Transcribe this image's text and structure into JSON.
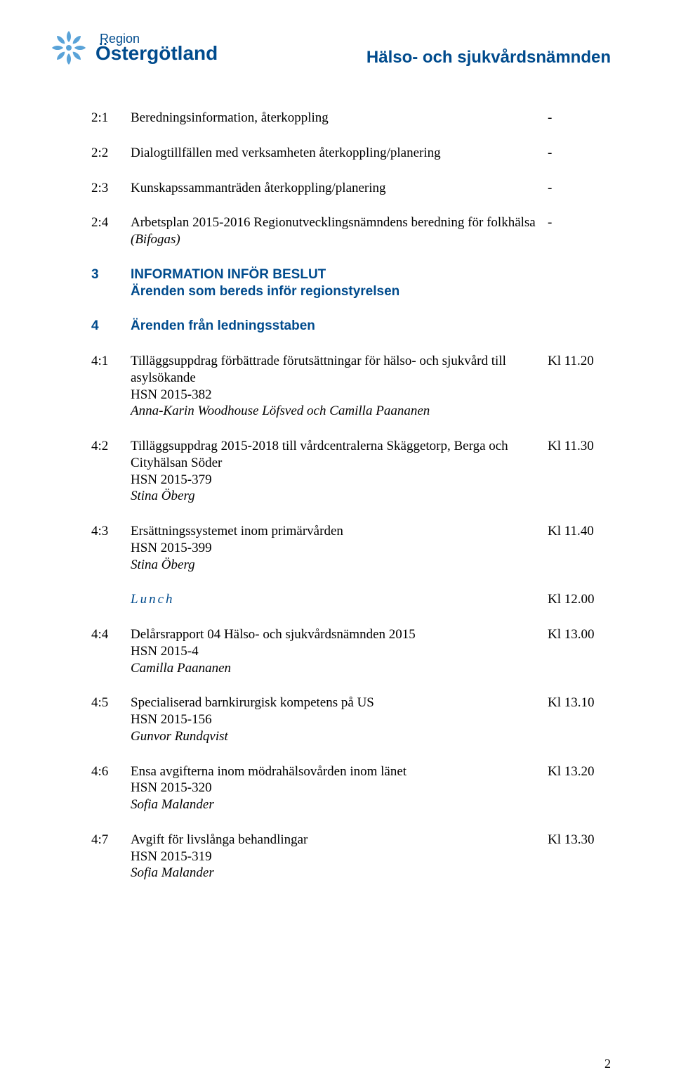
{
  "colors": {
    "brand_blue": "#004b8d",
    "text": "#000000",
    "background": "#ffffff"
  },
  "fonts": {
    "body_family": "Times New Roman",
    "heading_family": "Arial",
    "body_size_pt": 14,
    "heading_size_pt": 18
  },
  "logo": {
    "region_label": "Region",
    "name": "Östergötland"
  },
  "doc_title": "Hälso- och sjukvårdsnämnden",
  "rows": [
    {
      "id": "2:1",
      "body": "Beredningsinformation, återkoppling",
      "time": "-"
    },
    {
      "id": "2:2",
      "body": "Dialogtillfällen med verksamheten återkoppling/planering",
      "time": "-"
    },
    {
      "id": "2:3",
      "body": "Kunskapssammanträden återkoppling/planering",
      "time": "-"
    },
    {
      "id": "2:4",
      "body_line1": "Arbetsplan 2015-2016 Regionutvecklingsnämndens beredning för folkhälsa",
      "body_italic": "(Bifogas)",
      "time": "-"
    },
    {
      "id": "3",
      "blue_line1": "INFORMATION INFÖR BESLUT",
      "blue_line2": "Ärenden som bereds inför regionstyrelsen"
    },
    {
      "id": "4",
      "blue_line1": "Ärenden från ledningsstaben"
    },
    {
      "id": "4:1",
      "body_line1": "Tilläggsuppdrag förbättrade förutsättningar för hälso- och sjukvård till",
      "body_line2": "asylsökande",
      "body_line3": "HSN 2015-382",
      "body_italic": "Anna-Karin Woodhouse Löfsved och Camilla Paananen",
      "time": "Kl 11.20"
    },
    {
      "id": "4:2",
      "body_line1": "Tilläggsuppdrag 2015-2018 till vårdcentralerna Skäggetorp, Berga och",
      "body_line2": "Cityhälsan Söder",
      "body_line3": "HSN 2015-379",
      "body_italic": "Stina Öberg",
      "time": "Kl 11.30"
    },
    {
      "id": "4:3",
      "body_line1": "Ersättningssystemet inom primärvården",
      "body_line3": "HSN 2015-399",
      "body_italic": "Stina Öberg",
      "time": "Kl 11.40"
    },
    {
      "lunch": "Lunch",
      "time": "Kl 12.00"
    },
    {
      "id": "4:4",
      "body_line1": "Delårsrapport 04 Hälso- och sjukvårdsnämnden 2015",
      "body_line3": "HSN 2015-4",
      "body_italic": "Camilla Paananen",
      "time": "Kl 13.00"
    },
    {
      "id": "4:5",
      "body_line1": "Specialiserad barnkirurgisk kompetens på US",
      "body_line3": "HSN 2015-156",
      "body_italic": "Gunvor Rundqvist",
      "time": "Kl 13.10"
    },
    {
      "id": "4:6",
      "body_line1": "Ensa avgifterna inom mödrahälsovården inom länet",
      "body_line3": "HSN 2015-320",
      "body_italic": "Sofia Malander",
      "time": "Kl 13.20"
    },
    {
      "id": "4:7",
      "body_line1": "Avgift för livslånga behandlingar",
      "body_line3": "HSN 2015-319",
      "body_italic": "Sofia Malander",
      "time": "Kl 13.30"
    }
  ],
  "page_number": "2"
}
